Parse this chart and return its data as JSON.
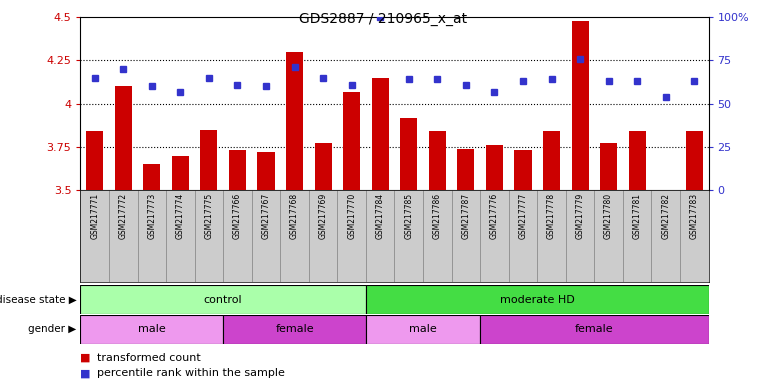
{
  "title": "GDS2887 / 210965_x_at",
  "samples": [
    "GSM217771",
    "GSM217772",
    "GSM217773",
    "GSM217774",
    "GSM217775",
    "GSM217766",
    "GSM217767",
    "GSM217768",
    "GSM217769",
    "GSM217770",
    "GSM217784",
    "GSM217785",
    "GSM217786",
    "GSM217787",
    "GSM217776",
    "GSM217777",
    "GSM217778",
    "GSM217779",
    "GSM217780",
    "GSM217781",
    "GSM217782",
    "GSM217783"
  ],
  "bar_values": [
    3.84,
    4.1,
    3.65,
    3.7,
    3.85,
    3.73,
    3.72,
    4.3,
    3.77,
    4.07,
    4.15,
    3.92,
    3.84,
    3.74,
    3.76,
    3.73,
    3.84,
    4.48,
    3.77,
    3.84,
    3.5,
    3.84
  ],
  "percentile_values": [
    65,
    70,
    60,
    57,
    65,
    61,
    60,
    71,
    65,
    61,
    100,
    64,
    64,
    61,
    57,
    63,
    64,
    76,
    63,
    63,
    54,
    63
  ],
  "ylim_left": [
    3.5,
    4.5
  ],
  "ylim_right": [
    0,
    100
  ],
  "yticks_left": [
    3.5,
    3.75,
    4.0,
    4.25,
    4.5
  ],
  "ytick_labels_left": [
    "3.5",
    "3.75",
    "4",
    "4.25",
    "4.5"
  ],
  "yticks_right": [
    0,
    25,
    50,
    75,
    100
  ],
  "ytick_labels_right": [
    "0",
    "25",
    "50",
    "75",
    "100%"
  ],
  "bar_color": "#CC0000",
  "dot_color": "#3333CC",
  "disease_state": [
    {
      "label": "control",
      "start": 0,
      "end": 10,
      "color": "#AAFFAA"
    },
    {
      "label": "moderate HD",
      "start": 10,
      "end": 22,
      "color": "#44DD44"
    }
  ],
  "gender": [
    {
      "label": "male",
      "start": 0,
      "end": 5,
      "color": "#EE99EE"
    },
    {
      "label": "female",
      "start": 5,
      "end": 10,
      "color": "#CC44CC"
    },
    {
      "label": "male",
      "start": 10,
      "end": 14,
      "color": "#EE99EE"
    },
    {
      "label": "female",
      "start": 14,
      "end": 22,
      "color": "#CC44CC"
    }
  ],
  "label_disease_state": "disease state ▶",
  "label_gender": "gender ▶",
  "legend_bar_label": "transformed count",
  "legend_dot_label": "percentile rank within the sample",
  "background_color": "#FFFFFF",
  "tick_cell_color": "#CCCCCC",
  "grid_yticks": [
    3.75,
    4.0,
    4.25
  ]
}
